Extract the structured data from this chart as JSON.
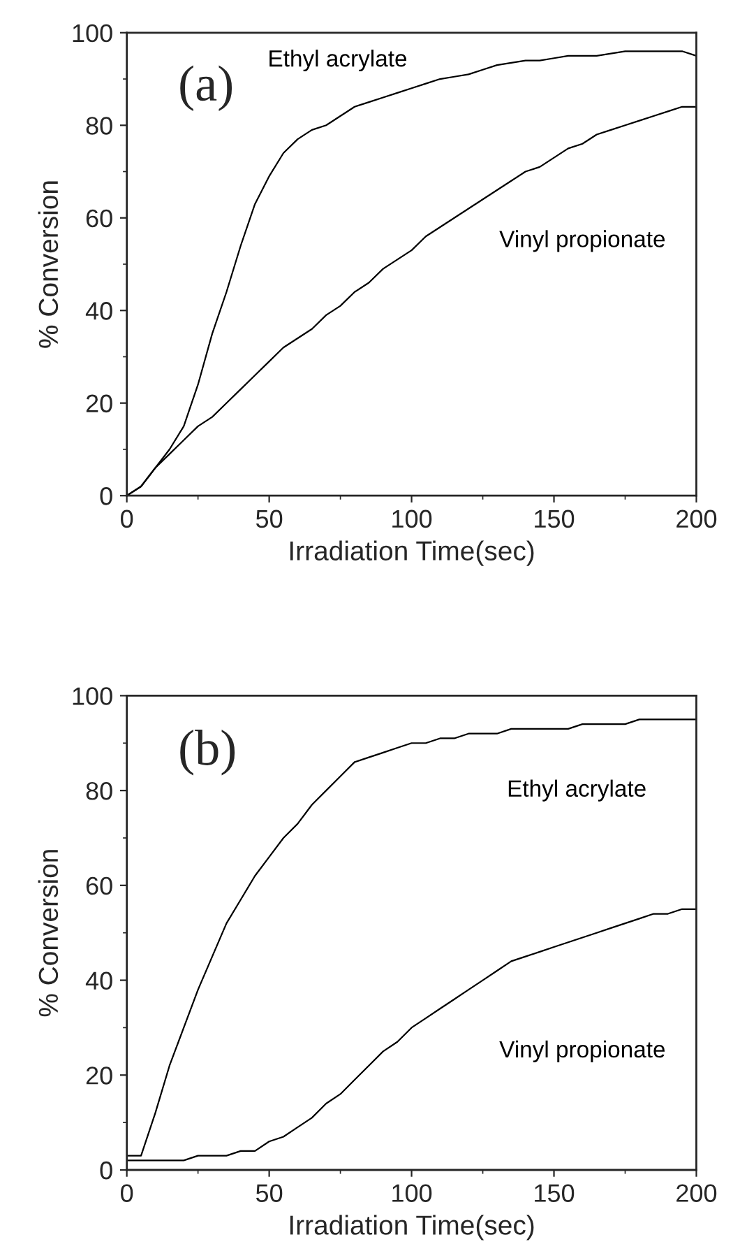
{
  "chart_data": [
    {
      "type": "line",
      "annotations": [
        "(a)"
      ],
      "xlabel": "Irradiation Time(sec)",
      "ylabel": "% Conversion",
      "xlim": [
        0,
        200
      ],
      "ylim": [
        0,
        100
      ],
      "xticks": [
        0,
        50,
        100,
        150,
        200
      ],
      "yticks": [
        0,
        20,
        40,
        60,
        80,
        100
      ],
      "grid": false,
      "x": [
        0,
        5,
        10,
        15,
        20,
        25,
        30,
        35,
        40,
        45,
        50,
        55,
        60,
        65,
        70,
        75,
        80,
        85,
        90,
        95,
        100,
        105,
        110,
        115,
        120,
        125,
        130,
        135,
        140,
        145,
        150,
        155,
        160,
        165,
        170,
        175,
        180,
        185,
        190,
        195,
        200
      ],
      "series": [
        {
          "name": "Ethyl acrylate",
          "color": "#000000",
          "values": [
            0,
            2,
            6,
            10,
            15,
            24,
            35,
            44,
            54,
            63,
            69,
            74,
            77,
            79,
            80,
            82,
            84,
            85,
            86,
            87,
            88,
            89,
            90,
            90.5,
            91,
            92,
            93,
            93.5,
            94,
            94,
            94.5,
            95,
            95,
            95,
            95.5,
            96,
            96,
            96,
            96,
            96,
            95
          ]
        },
        {
          "name": "Vinyl propionate",
          "color": "#000000",
          "values": [
            0,
            2,
            6,
            9,
            12,
            15,
            17,
            20,
            23,
            26,
            29,
            32,
            34,
            36,
            39,
            41,
            44,
            46,
            49,
            51,
            53,
            56,
            58,
            60,
            62,
            64,
            66,
            68,
            70,
            71,
            73,
            75,
            76,
            78,
            79,
            80,
            81,
            82,
            83,
            84,
            84
          ]
        }
      ]
    },
    {
      "type": "line",
      "annotations": [
        "(b)"
      ],
      "xlabel": "Irradiation Time(sec)",
      "ylabel": "% Conversion",
      "xlim": [
        0,
        200
      ],
      "ylim": [
        0,
        100
      ],
      "xticks": [
        0,
        50,
        100,
        150,
        200
      ],
      "yticks": [
        0,
        20,
        40,
        60,
        80,
        100
      ],
      "grid": false,
      "x": [
        0,
        5,
        10,
        15,
        20,
        25,
        30,
        35,
        40,
        45,
        50,
        55,
        60,
        65,
        70,
        75,
        80,
        85,
        90,
        95,
        100,
        105,
        110,
        115,
        120,
        125,
        130,
        135,
        140,
        145,
        150,
        155,
        160,
        165,
        170,
        175,
        180,
        185,
        190,
        195,
        200
      ],
      "series": [
        {
          "name": "Ethyl acrylate",
          "color": "#000000",
          "values": [
            3,
            3,
            12,
            22,
            30,
            38,
            45,
            52,
            57,
            62,
            66,
            70,
            73,
            77,
            80,
            83,
            86,
            87,
            88,
            89,
            90,
            90,
            91,
            91,
            92,
            92,
            92,
            93,
            93,
            93,
            93,
            93,
            94,
            94,
            94,
            94,
            95,
            95,
            95,
            95,
            95
          ]
        },
        {
          "name": "Vinyl propionate",
          "color": "#000000",
          "values": [
            2,
            2,
            2,
            2,
            2,
            3,
            3,
            3,
            4,
            4,
            6,
            7,
            9,
            11,
            14,
            16,
            19,
            22,
            25,
            27,
            30,
            32,
            34,
            36,
            38,
            40,
            42,
            44,
            45,
            46,
            47,
            48,
            49,
            50,
            51,
            52,
            53,
            54,
            54,
            55,
            55
          ]
        }
      ]
    }
  ]
}
